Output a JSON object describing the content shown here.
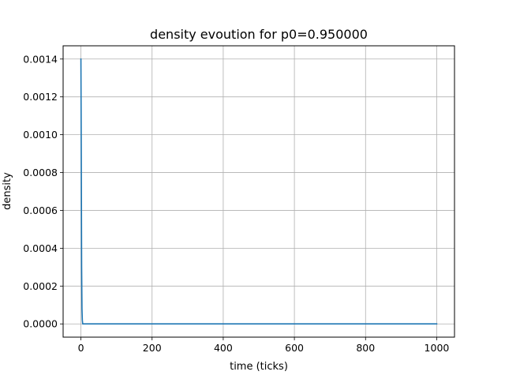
{
  "chart_data": {
    "type": "line",
    "title": "density evoution for p0=0.950000",
    "xlabel": "time (ticks)",
    "ylabel": "density",
    "xlim": [
      -50,
      1050
    ],
    "ylim": [
      -7e-05,
      0.00147
    ],
    "grid": true,
    "line_color": "#1f77b4",
    "x_ticks": [
      0,
      200,
      400,
      600,
      800,
      1000
    ],
    "x_tick_labels": [
      "0",
      "200",
      "400",
      "600",
      "800",
      "1000"
    ],
    "y_ticks": [
      0.0,
      0.0002,
      0.0004,
      0.0006,
      0.0008,
      0.001,
      0.0012,
      0.0014
    ],
    "y_tick_labels": [
      "0.0000",
      "0.0002",
      "0.0004",
      "0.0006",
      "0.0008",
      "0.0010",
      "0.0012",
      "0.0014"
    ],
    "series": [
      {
        "x": [
          0,
          1,
          2,
          3,
          4,
          5,
          10,
          50,
          100,
          200,
          400,
          600,
          800,
          1000
        ],
        "y": [
          0.0014,
          0.0009,
          0.0003,
          8e-05,
          2e-05,
          0.0,
          0.0,
          0.0,
          0.0,
          0.0,
          0.0,
          0.0,
          0.0,
          0.0
        ]
      }
    ]
  }
}
